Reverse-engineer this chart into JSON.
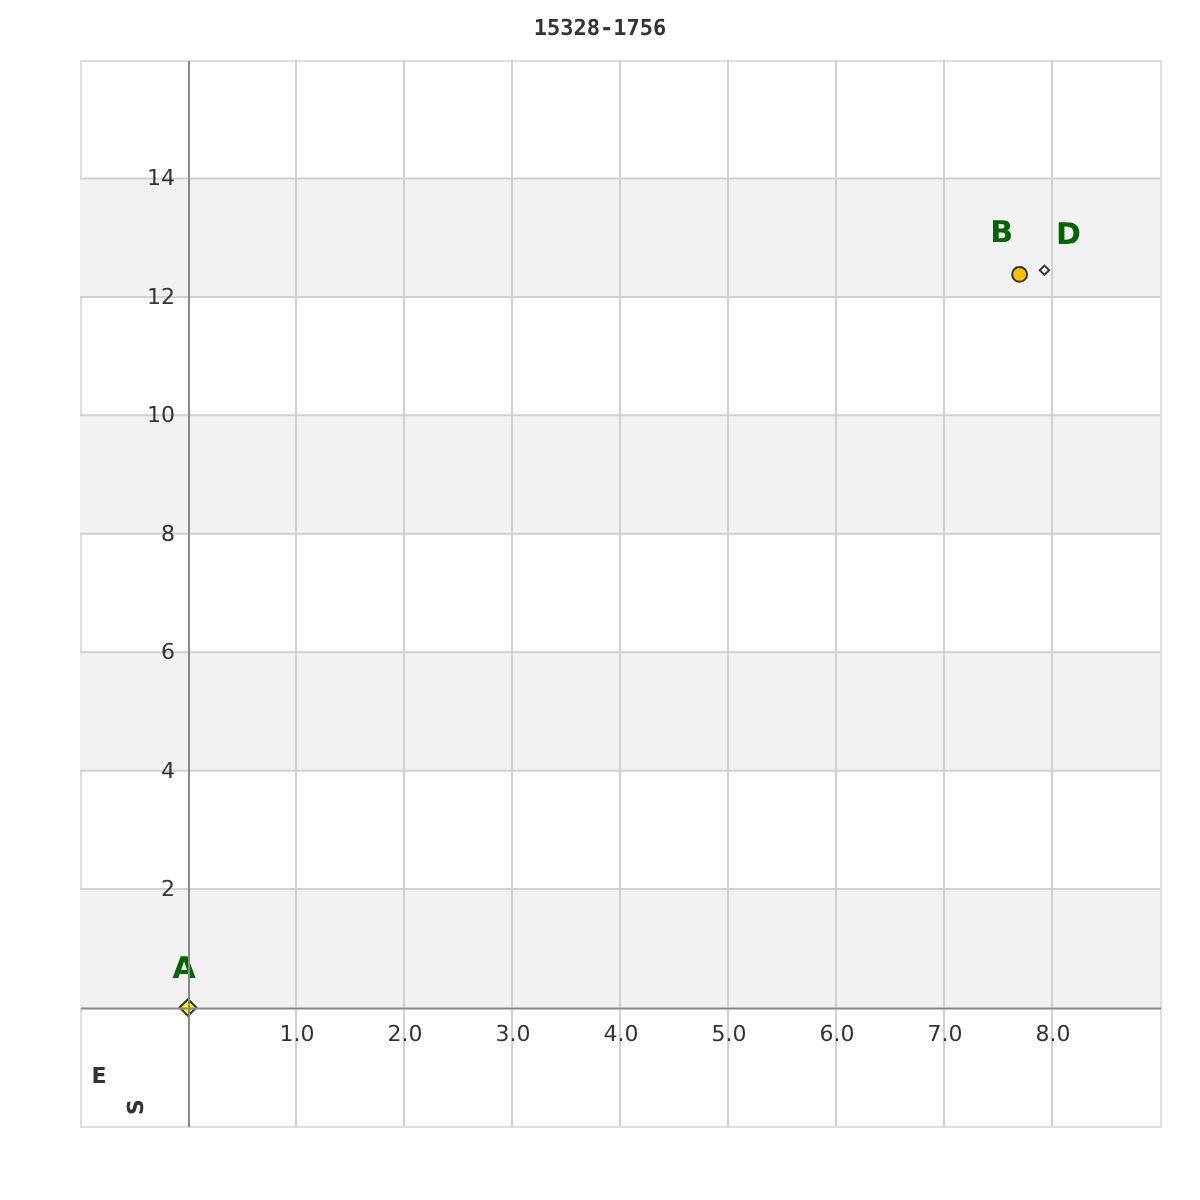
{
  "chart_data": {
    "type": "scatter",
    "title": "15328-1756",
    "xlabel": "E",
    "ylabel": "S",
    "xlim": [
      -1,
      9
    ],
    "ylim": [
      -2,
      16
    ],
    "xticks": [
      {
        "value": 1,
        "label": "1.0"
      },
      {
        "value": 2,
        "label": "2.0"
      },
      {
        "value": 3,
        "label": "3.0"
      },
      {
        "value": 4,
        "label": "4.0"
      },
      {
        "value": 5,
        "label": "5.0"
      },
      {
        "value": 6,
        "label": "6.0"
      },
      {
        "value": 7,
        "label": "7.0"
      },
      {
        "value": 8,
        "label": "8.0"
      }
    ],
    "yticks": [
      2,
      4,
      6,
      8,
      10,
      12,
      14
    ],
    "grid": true,
    "bands": [
      {
        "axis": "y",
        "from": 0,
        "to": 2,
        "color": "#f2f2f2"
      },
      {
        "axis": "y",
        "from": 4,
        "to": 6,
        "color": "#f2f2f2"
      },
      {
        "axis": "y",
        "from": 8,
        "to": 10,
        "color": "#f2f2f2"
      },
      {
        "axis": "y",
        "from": 12,
        "to": 14,
        "color": "#f2f2f2"
      }
    ],
    "series": [
      {
        "name": "A",
        "color": "#ffff00",
        "marker": "diamond",
        "x": [
          0
        ],
        "values": [
          0
        ]
      },
      {
        "name": "B",
        "color": "#ffc000",
        "marker": "circle",
        "x": [
          7.7
        ],
        "values": [
          12.38
        ]
      },
      {
        "name": "D",
        "color": "#ffffff",
        "marker": "diamond",
        "x": [
          7.93
        ],
        "values": [
          12.45
        ]
      }
    ]
  }
}
